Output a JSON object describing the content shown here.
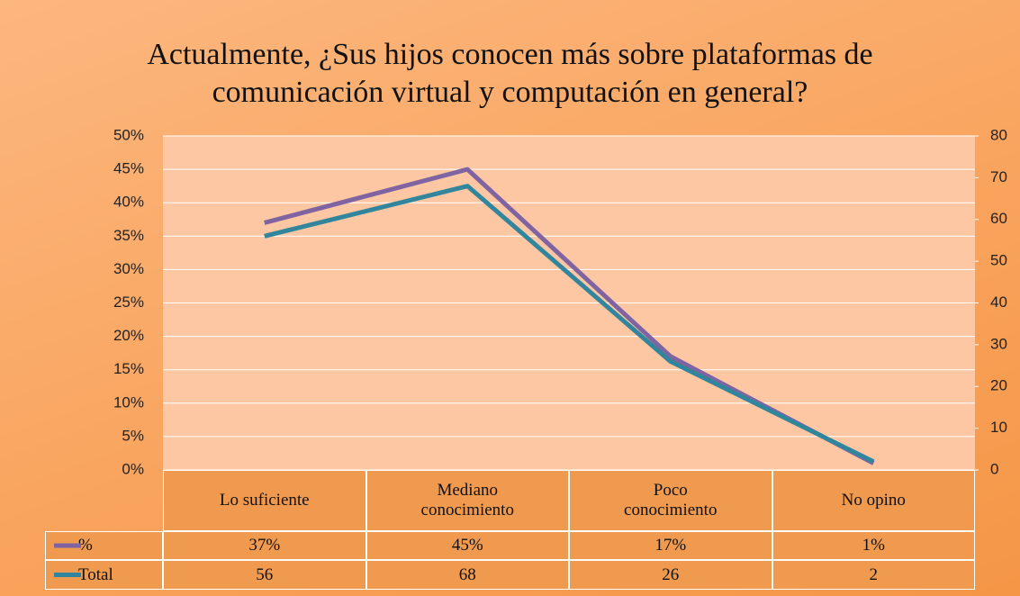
{
  "chart_data": {
    "type": "line",
    "title": "Actualmente, ¿Sus hijos conocen más sobre plataformas de comunicación virtual y computación en general?",
    "categories": [
      "Lo suficiente",
      "Mediano conocimiento",
      "Poco conocimiento",
      "No opino"
    ],
    "series": [
      {
        "name": "%",
        "color": "#8064a2",
        "values": [
          37,
          45,
          17,
          1
        ],
        "value_labels": [
          "37%",
          "45%",
          "17%",
          "1%"
        ]
      },
      {
        "name": "Total",
        "color": "#31859c",
        "axis": "y2",
        "values": [
          56,
          68,
          26,
          2
        ]
      }
    ],
    "ylim": [
      0,
      50
    ],
    "yticks": [
      {
        "value": 0,
        "label": "0%"
      },
      {
        "value": 5,
        "label": "5%"
      },
      {
        "value": 10,
        "label": "10%"
      },
      {
        "value": 15,
        "label": "15%"
      },
      {
        "value": 20,
        "label": "20%"
      },
      {
        "value": 25,
        "label": "25%"
      },
      {
        "value": 30,
        "label": "30%"
      },
      {
        "value": 35,
        "label": "35%"
      },
      {
        "value": 40,
        "label": "40%"
      },
      {
        "value": 45,
        "label": "45%"
      },
      {
        "value": 50,
        "label": "50%"
      }
    ],
    "y2lim": [
      0,
      80
    ],
    "y2ticks": [
      0,
      10,
      20,
      30,
      40,
      50,
      60,
      70,
      80
    ],
    "grid": true
  }
}
